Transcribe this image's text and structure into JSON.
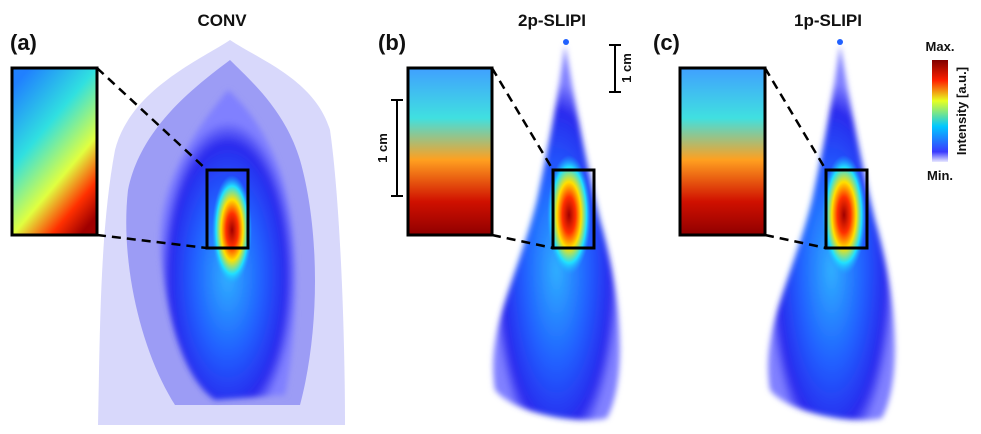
{
  "panels": [
    {
      "label": "(a)",
      "title": "CONV"
    },
    {
      "label": "(b)",
      "title": "2p-SLIPI"
    },
    {
      "label": "(c)",
      "title": "1p-SLIPI"
    }
  ],
  "scale_bars": [
    "1 cm",
    "1 cm"
  ],
  "colorbar": {
    "max": "Max.",
    "min": "Min.",
    "label": "Intensity [a.u.]"
  }
}
